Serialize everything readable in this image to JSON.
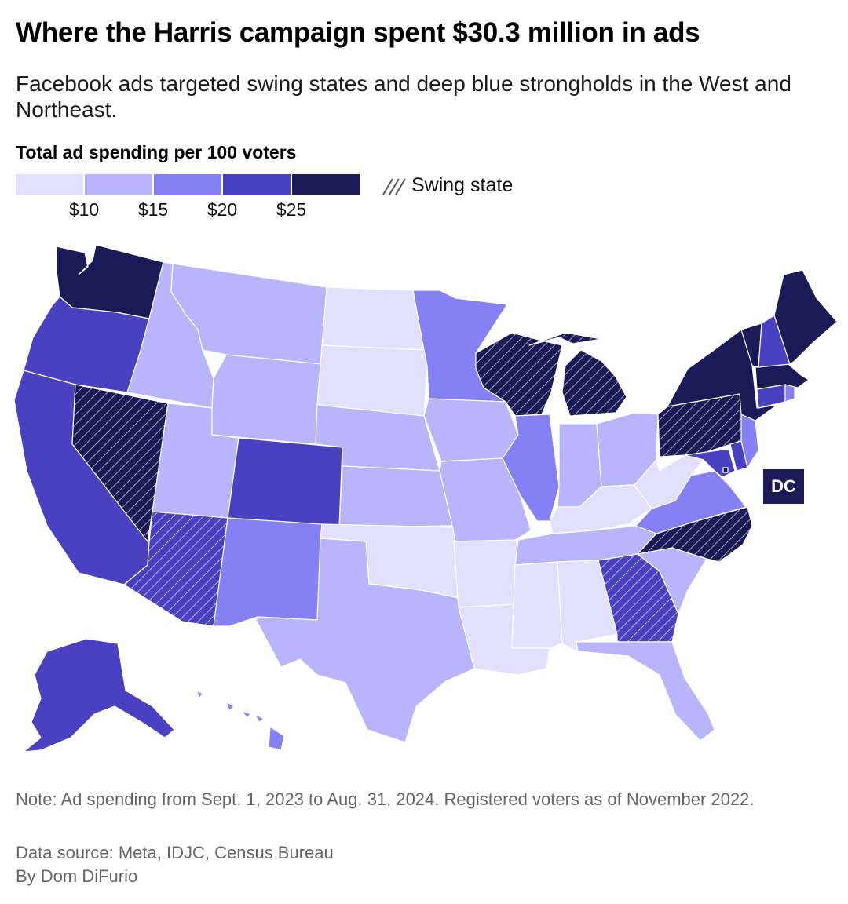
{
  "title": "Where the Harris campaign spent $30.3 million in ads",
  "subtitle": "Facebook ads targeted swing states and deep blue strongholds in the West and Northeast.",
  "legend": {
    "title": "Total ad spending per 100 voters",
    "colors": [
      "#e2e0fe",
      "#b8b5fc",
      "#8580f3",
      "#4a41c2",
      "#1a1a56"
    ],
    "ticks": [
      "$10",
      "$15",
      "$20",
      "$25"
    ],
    "swing_label": "Swing state"
  },
  "map_data": {
    "type": "choropleth",
    "metric": "Total ad spending per 100 voters",
    "bin_edges": [
      10,
      15,
      20,
      25
    ],
    "states": [
      {
        "state": "WA",
        "bin": 4,
        "swing": false
      },
      {
        "state": "OR",
        "bin": 3,
        "swing": false
      },
      {
        "state": "CA",
        "bin": 3,
        "swing": false
      },
      {
        "state": "NV",
        "bin": 4,
        "swing": true
      },
      {
        "state": "ID",
        "bin": 1,
        "swing": false
      },
      {
        "state": "MT",
        "bin": 1,
        "swing": false
      },
      {
        "state": "WY",
        "bin": 1,
        "swing": false
      },
      {
        "state": "UT",
        "bin": 1,
        "swing": false
      },
      {
        "state": "AZ",
        "bin": 3,
        "swing": true
      },
      {
        "state": "CO",
        "bin": 3,
        "swing": false
      },
      {
        "state": "NM",
        "bin": 2,
        "swing": false
      },
      {
        "state": "ND",
        "bin": 0,
        "swing": false
      },
      {
        "state": "SD",
        "bin": 0,
        "swing": false
      },
      {
        "state": "NE",
        "bin": 1,
        "swing": false
      },
      {
        "state": "KS",
        "bin": 1,
        "swing": false
      },
      {
        "state": "OK",
        "bin": 0,
        "swing": false
      },
      {
        "state": "TX",
        "bin": 1,
        "swing": false
      },
      {
        "state": "MN",
        "bin": 2,
        "swing": false
      },
      {
        "state": "IA",
        "bin": 1,
        "swing": false
      },
      {
        "state": "MO",
        "bin": 1,
        "swing": false
      },
      {
        "state": "AR",
        "bin": 0,
        "swing": false
      },
      {
        "state": "LA",
        "bin": 0,
        "swing": false
      },
      {
        "state": "WI",
        "bin": 4,
        "swing": true
      },
      {
        "state": "IL",
        "bin": 2,
        "swing": false
      },
      {
        "state": "MI",
        "bin": 4,
        "swing": true
      },
      {
        "state": "IN",
        "bin": 1,
        "swing": false
      },
      {
        "state": "OH",
        "bin": 1,
        "swing": false
      },
      {
        "state": "KY",
        "bin": 0,
        "swing": false
      },
      {
        "state": "TN",
        "bin": 1,
        "swing": false
      },
      {
        "state": "MS",
        "bin": 0,
        "swing": false
      },
      {
        "state": "AL",
        "bin": 0,
        "swing": false
      },
      {
        "state": "GA",
        "bin": 3,
        "swing": true
      },
      {
        "state": "FL",
        "bin": 1,
        "swing": false
      },
      {
        "state": "SC",
        "bin": 1,
        "swing": false
      },
      {
        "state": "NC",
        "bin": 4,
        "swing": true
      },
      {
        "state": "VA",
        "bin": 2,
        "swing": false
      },
      {
        "state": "WV",
        "bin": 0,
        "swing": false
      },
      {
        "state": "PA",
        "bin": 4,
        "swing": true
      },
      {
        "state": "NY",
        "bin": 4,
        "swing": false
      },
      {
        "state": "VT",
        "bin": 4,
        "swing": false
      },
      {
        "state": "NH",
        "bin": 3,
        "swing": false
      },
      {
        "state": "ME",
        "bin": 4,
        "swing": false
      },
      {
        "state": "MA",
        "bin": 4,
        "swing": false
      },
      {
        "state": "RI",
        "bin": 2,
        "swing": false
      },
      {
        "state": "CT",
        "bin": 3,
        "swing": false
      },
      {
        "state": "NJ",
        "bin": 2,
        "swing": false
      },
      {
        "state": "DE",
        "bin": 3,
        "swing": false
      },
      {
        "state": "MD",
        "bin": 3,
        "swing": false
      },
      {
        "state": "DC",
        "bin": 4,
        "swing": false
      },
      {
        "state": "AK",
        "bin": 3,
        "swing": false
      },
      {
        "state": "HI",
        "bin": 2,
        "swing": false
      }
    ]
  },
  "dc_label": "DC",
  "note": "Note: Ad spending from Sept. 1, 2023 to Aug. 31, 2024. Registered voters as of November 2022.",
  "source": "Data source: Meta, IDJC, Census Bureau",
  "byline": "By Dom DiFurio"
}
